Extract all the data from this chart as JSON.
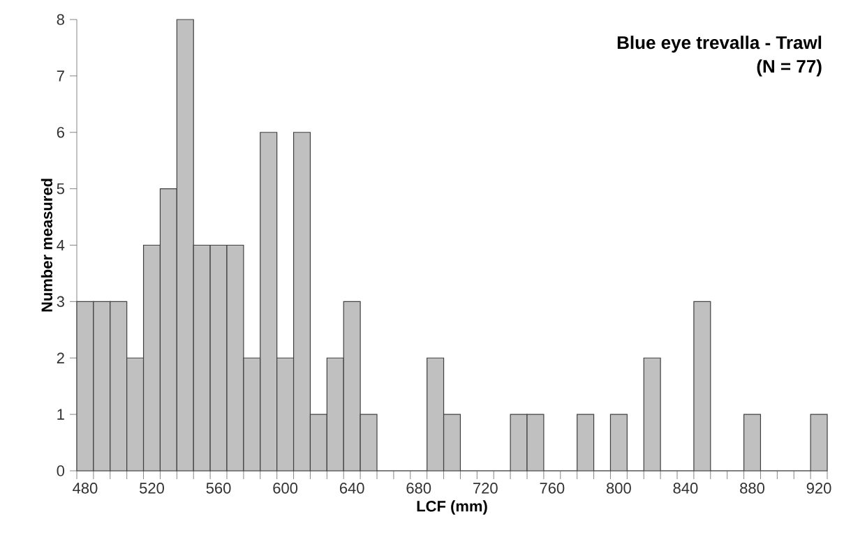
{
  "chart_data": {
    "type": "histogram",
    "title": "Blue eye trevalla - Trawl",
    "subtitle": "(N = 77)",
    "xlabel": "LCF (mm)",
    "ylabel": "Number measured",
    "bins": [
      475,
      485,
      495,
      505,
      515,
      525,
      535,
      545,
      555,
      565,
      575,
      585,
      595,
      605,
      615,
      625,
      635,
      645,
      655,
      665,
      675,
      685,
      695,
      705,
      715,
      725,
      735,
      745,
      755,
      765,
      775,
      785,
      795,
      805,
      815,
      825,
      835,
      845,
      855,
      865,
      875,
      885,
      895,
      905,
      915,
      925
    ],
    "values": [
      3,
      3,
      3,
      2,
      4,
      5,
      8,
      4,
      4,
      4,
      2,
      6,
      2,
      6,
      1,
      2,
      3,
      1,
      0,
      0,
      0,
      2,
      1,
      0,
      0,
      0,
      1,
      1,
      0,
      0,
      1,
      0,
      1,
      0,
      2,
      0,
      0,
      3,
      0,
      0,
      1,
      0,
      0,
      0,
      1
    ],
    "color": "#c0c0c0",
    "xlim": [
      475,
      925
    ],
    "ylim": [
      0,
      8
    ],
    "xticks": [
      480,
      520,
      560,
      600,
      640,
      680,
      720,
      760,
      800,
      840,
      880,
      920
    ],
    "yticks": [
      0,
      1,
      2,
      3,
      4,
      5,
      6,
      7,
      8
    ],
    "grid": false
  }
}
